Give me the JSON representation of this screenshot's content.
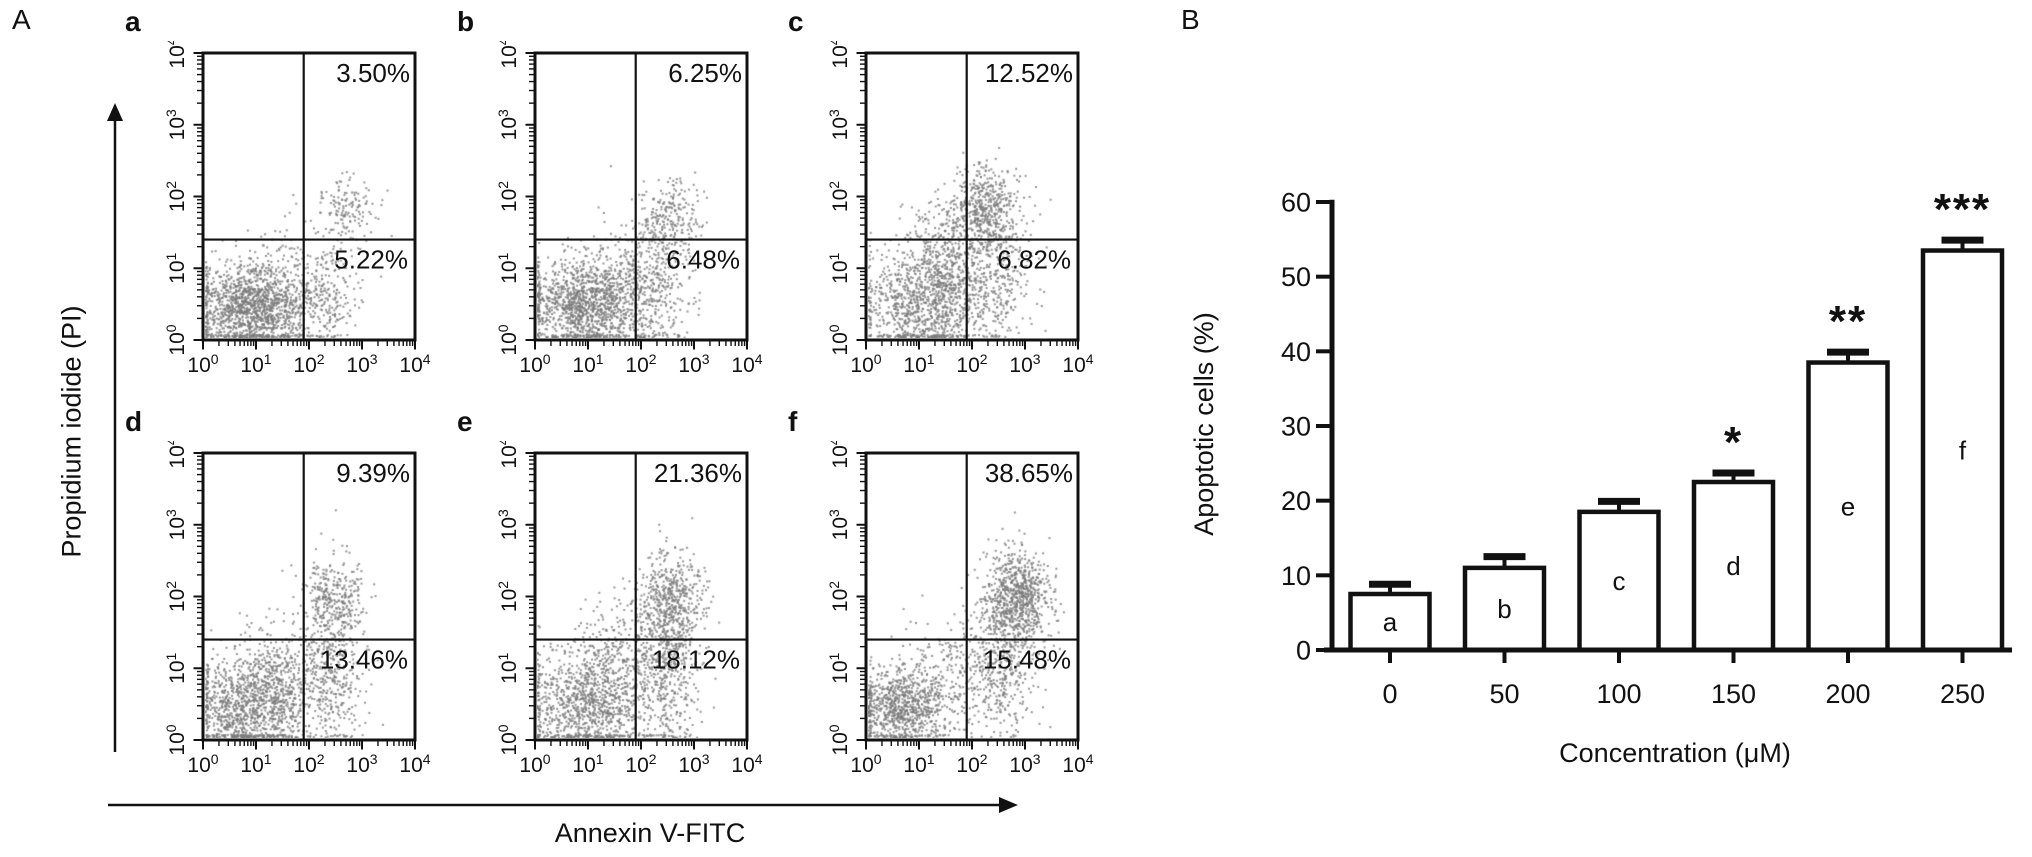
{
  "figure": {
    "panel_a_label": "A",
    "panel_b_label": "B",
    "background": "#ffffff",
    "ink_color": "#111111",
    "dot_color": "#7a7a7a"
  },
  "flow": {
    "x_axis_label": "Annexin V-FITC",
    "y_axis_label": "Propidium iodide (PI)",
    "decade_labels": [
      "10⁰",
      "10¹",
      "10²",
      "10³",
      "10⁴"
    ],
    "decade_exponents": [
      "0",
      "1",
      "2",
      "3",
      "4"
    ]
  },
  "chart_data": [
    {
      "id": "flow-a",
      "type": "scatter",
      "panel_label": "a",
      "upper_right_pct": "3.50%",
      "lower_right_pct": "5.22%",
      "x_axis": "Annexin V-FITC (log10 0-4)",
      "y_axis": "Propidium iodide (log10 0-4)",
      "axis_range_log10": [
        0,
        4
      ],
      "quadrant_x_log10": 1.9,
      "quadrant_y_log10": 1.4,
      "clusters": [
        {
          "cx": 0.85,
          "cy": 0.42,
          "sx": 0.5,
          "sy": 0.3,
          "n": 1250
        },
        {
          "cx": 1.75,
          "cy": 0.55,
          "sx": 0.45,
          "sy": 0.35,
          "n": 260
        },
        {
          "cx": 2.35,
          "cy": 0.6,
          "sx": 0.3,
          "sy": 0.42,
          "n": 170
        },
        {
          "cx": 2.75,
          "cy": 1.8,
          "sx": 0.28,
          "sy": 0.24,
          "n": 150
        },
        {
          "cx": 1.4,
          "cy": 1.05,
          "sx": 0.5,
          "sy": 0.4,
          "n": 70
        }
      ]
    },
    {
      "id": "flow-b",
      "type": "scatter",
      "panel_label": "b",
      "upper_right_pct": "6.25%",
      "lower_right_pct": "6.48%",
      "x_axis": "Annexin V-FITC (log10 0-4)",
      "y_axis": "Propidium iodide (log10 0-4)",
      "axis_range_log10": [
        0,
        4
      ],
      "quadrant_x_log10": 1.9,
      "quadrant_y_log10": 1.4,
      "clusters": [
        {
          "cx": 0.95,
          "cy": 0.48,
          "sx": 0.55,
          "sy": 0.32,
          "n": 1250
        },
        {
          "cx": 1.8,
          "cy": 0.75,
          "sx": 0.5,
          "sy": 0.45,
          "n": 300
        },
        {
          "cx": 2.4,
          "cy": 0.7,
          "sx": 0.3,
          "sy": 0.45,
          "n": 190
        },
        {
          "cx": 2.55,
          "cy": 1.68,
          "sx": 0.3,
          "sy": 0.28,
          "n": 240
        }
      ]
    },
    {
      "id": "flow-c",
      "type": "scatter",
      "panel_label": "c",
      "upper_right_pct": "12.52%",
      "lower_right_pct": "6.82%",
      "x_axis": "Annexin V-FITC (log10 0-4)",
      "y_axis": "Propidium iodide (log10 0-4)",
      "axis_range_log10": [
        0,
        4
      ],
      "quadrant_x_log10": 1.9,
      "quadrant_y_log10": 1.4,
      "clusters": [
        {
          "cx": 1.15,
          "cy": 0.55,
          "sx": 0.6,
          "sy": 0.4,
          "n": 1150
        },
        {
          "cx": 1.8,
          "cy": 1.2,
          "sx": 0.5,
          "sy": 0.45,
          "n": 380
        },
        {
          "cx": 2.25,
          "cy": 1.8,
          "sx": 0.33,
          "sy": 0.32,
          "n": 520
        },
        {
          "cx": 2.6,
          "cy": 0.85,
          "sx": 0.35,
          "sy": 0.45,
          "n": 160
        }
      ]
    },
    {
      "id": "flow-d",
      "type": "scatter",
      "panel_label": "d",
      "upper_right_pct": "9.39%",
      "lower_right_pct": "13.46%",
      "x_axis": "Annexin V-FITC (log10 0-4)",
      "y_axis": "Propidium iodide (log10 0-4)",
      "axis_range_log10": [
        0,
        4
      ],
      "quadrant_x_log10": 1.9,
      "quadrant_y_log10": 1.4,
      "clusters": [
        {
          "cx": 0.85,
          "cy": 0.45,
          "sx": 0.55,
          "sy": 0.35,
          "n": 1100
        },
        {
          "cx": 1.6,
          "cy": 0.9,
          "sx": 0.5,
          "sy": 0.4,
          "n": 320
        },
        {
          "cx": 2.45,
          "cy": 1.0,
          "sx": 0.3,
          "sy": 0.55,
          "n": 360
        },
        {
          "cx": 2.5,
          "cy": 1.95,
          "sx": 0.3,
          "sy": 0.3,
          "n": 310
        }
      ]
    },
    {
      "id": "flow-e",
      "type": "scatter",
      "panel_label": "e",
      "upper_right_pct": "21.36%",
      "lower_right_pct": "18.12%",
      "x_axis": "Annexin V-FITC (log10 0-4)",
      "y_axis": "Propidium iodide (log10 0-4)",
      "axis_range_log10": [
        0,
        4
      ],
      "quadrant_x_log10": 1.9,
      "quadrant_y_log10": 1.4,
      "clusters": [
        {
          "cx": 1.0,
          "cy": 0.5,
          "sx": 0.6,
          "sy": 0.38,
          "n": 1000
        },
        {
          "cx": 1.7,
          "cy": 1.1,
          "sx": 0.5,
          "sy": 0.45,
          "n": 360
        },
        {
          "cx": 2.55,
          "cy": 1.1,
          "sx": 0.3,
          "sy": 0.6,
          "n": 460
        },
        {
          "cx": 2.6,
          "cy": 1.95,
          "sx": 0.32,
          "sy": 0.33,
          "n": 420
        }
      ]
    },
    {
      "id": "flow-f",
      "type": "scatter",
      "panel_label": "f",
      "upper_right_pct": "38.65%",
      "lower_right_pct": "15.48%",
      "x_axis": "Annexin V-FITC (log10 0-4)",
      "y_axis": "Propidium iodide (log10 0-4)",
      "axis_range_log10": [
        0,
        4
      ],
      "quadrant_x_log10": 1.9,
      "quadrant_y_log10": 1.4,
      "clusters": [
        {
          "cx": 0.7,
          "cy": 0.42,
          "sx": 0.45,
          "sy": 0.28,
          "n": 850
        },
        {
          "cx": 1.5,
          "cy": 0.9,
          "sx": 0.5,
          "sy": 0.4,
          "n": 220
        },
        {
          "cx": 2.55,
          "cy": 1.0,
          "sx": 0.35,
          "sy": 0.5,
          "n": 380
        },
        {
          "cx": 2.85,
          "cy": 1.95,
          "sx": 0.33,
          "sy": 0.35,
          "n": 850
        }
      ]
    },
    {
      "id": "apoptosis-bar",
      "type": "bar",
      "title": "",
      "xlabel": "Concentration (μM)",
      "ylabel": "Apoptotic cells (%)",
      "categories": [
        "0",
        "50",
        "100",
        "150",
        "200",
        "250"
      ],
      "values": [
        7.5,
        11,
        18.5,
        22.5,
        38.5,
        53.5
      ],
      "errors": [
        1.3,
        1.5,
        1.4,
        1.2,
        1.4,
        1.4
      ],
      "bar_letters": [
        "a",
        "b",
        "c",
        "d",
        "e",
        "f"
      ],
      "significance": [
        "",
        "",
        "",
        "*",
        "**",
        "***"
      ],
      "ylim": [
        0,
        60
      ],
      "yticks": [
        "0",
        "10",
        "20",
        "30",
        "40",
        "50",
        "60"
      ],
      "grid": false,
      "legend": null,
      "bar_fill": "#ffffff",
      "bar_edge": "#111111"
    }
  ]
}
